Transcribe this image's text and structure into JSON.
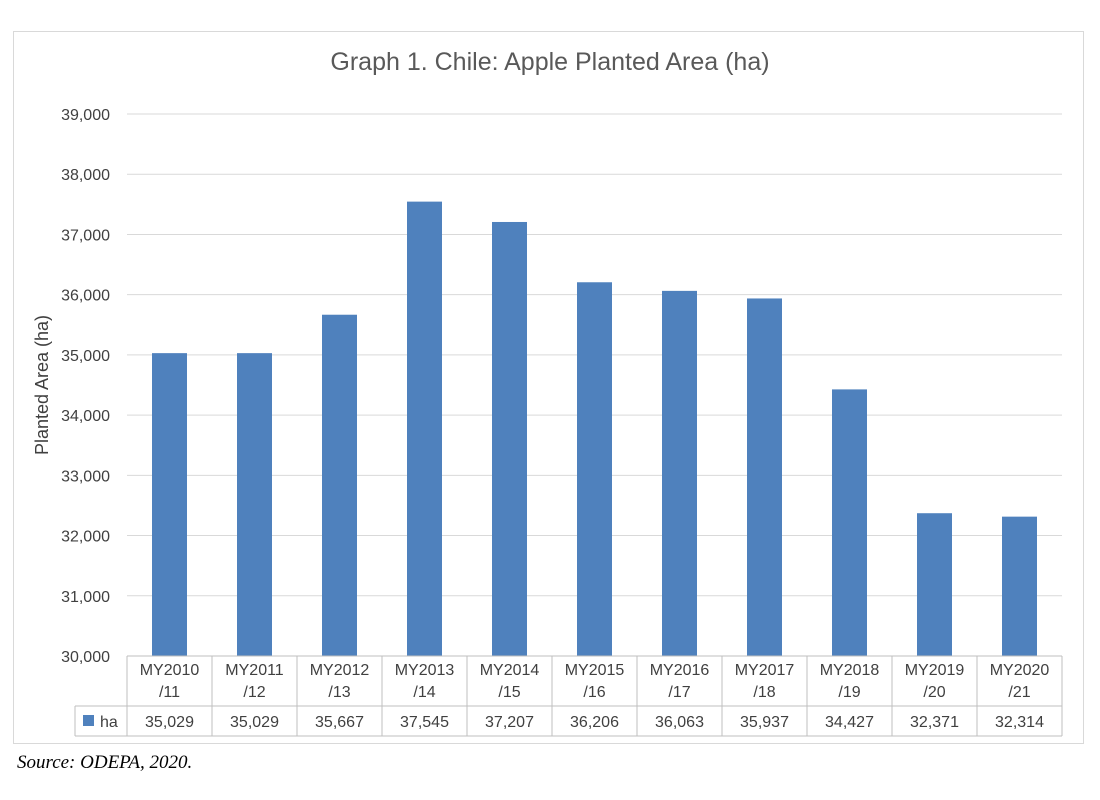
{
  "chart_data": {
    "type": "bar",
    "title": "Graph 1.  Chile: Apple Planted Area (ha)",
    "ylabel": "Planted Area (ha)",
    "ylim": [
      30000,
      39000
    ],
    "y_ticks": [
      "30,000",
      "31,000",
      "32,000",
      "33,000",
      "34,000",
      "35,000",
      "36,000",
      "37,000",
      "38,000",
      "39,000"
    ],
    "categories": [
      [
        "MY2010",
        "/11"
      ],
      [
        "MY2011",
        "/12"
      ],
      [
        "MY2012",
        "/13"
      ],
      [
        "MY2013",
        "/14"
      ],
      [
        "MY2014",
        "/15"
      ],
      [
        "MY2015",
        "/16"
      ],
      [
        "MY2016",
        "/17"
      ],
      [
        "MY2017",
        "/18"
      ],
      [
        "MY2018",
        "/19"
      ],
      [
        "MY2019",
        "/20"
      ],
      [
        "MY2020",
        "/21"
      ]
    ],
    "series": [
      {
        "name": "ha",
        "color": "#4f81bd",
        "values": [
          35029,
          35029,
          35667,
          37545,
          37207,
          36206,
          36063,
          35937,
          34427,
          32371,
          32314
        ],
        "value_labels": [
          "35,029",
          "35,029",
          "35,667",
          "37,545",
          "37,207",
          "36,206",
          "36,063",
          "35,937",
          "34,427",
          "32,371",
          "32,314"
        ]
      }
    ],
    "grid": true,
    "legend": "data-table"
  },
  "source": "Source: ODEPA, 2020."
}
